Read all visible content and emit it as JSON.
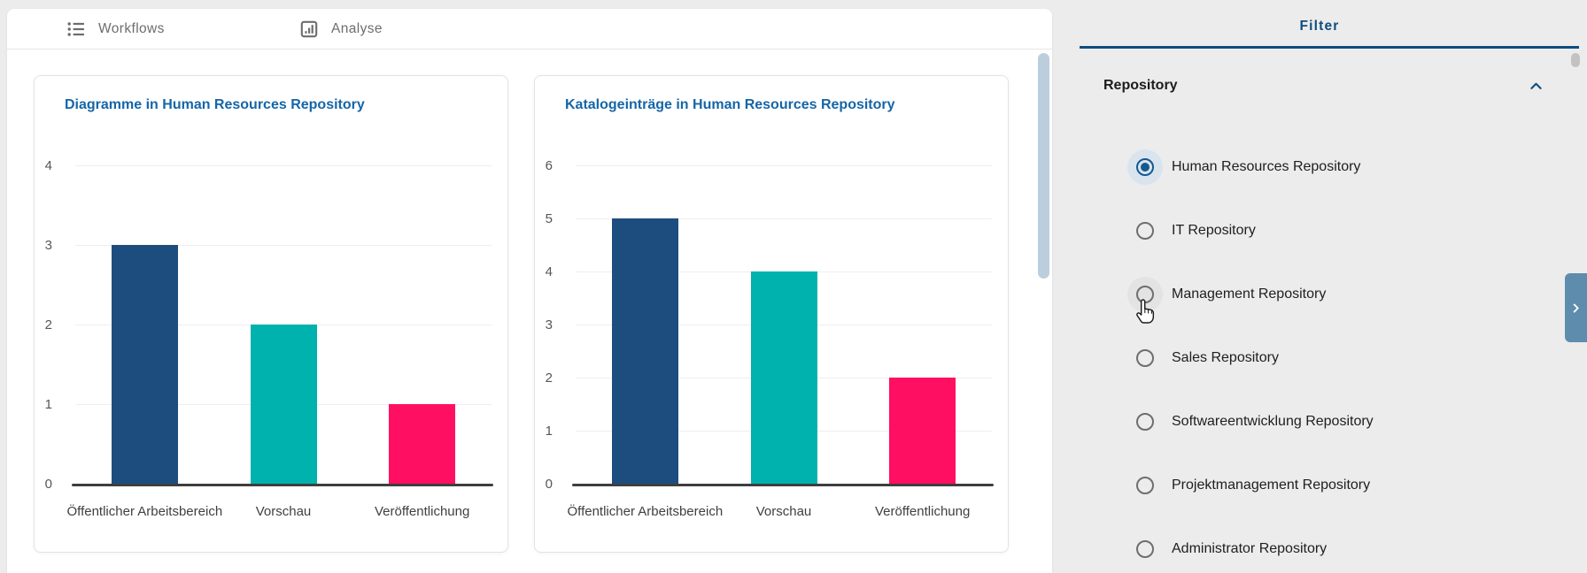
{
  "tabs": [
    {
      "label": "Workflows",
      "icon": "list-bulleted-icon"
    },
    {
      "label": "Analyse",
      "icon": "analytics-icon"
    }
  ],
  "filter": {
    "title": "Filter",
    "section": {
      "label": "Repository",
      "state": "expanded",
      "icon": "chevron-up-icon"
    },
    "options": [
      {
        "label": "Human Resources Repository",
        "selected": true,
        "hover": false
      },
      {
        "label": "IT Repository",
        "selected": false,
        "hover": false
      },
      {
        "label": "Management Repository",
        "selected": false,
        "hover": true
      },
      {
        "label": "Sales Repository",
        "selected": false,
        "hover": false
      },
      {
        "label": "Softwareentwicklung Repository",
        "selected": false,
        "hover": false
      },
      {
        "label": "Projektmanagement Repository",
        "selected": false,
        "hover": false
      },
      {
        "label": "Administrator Repository",
        "selected": false,
        "hover": false
      }
    ]
  },
  "chart_data": [
    {
      "type": "bar",
      "title": "Diagramme in Human Resources Repository",
      "categories": [
        "Öffentlicher Arbeitsbereich",
        "Vorschau",
        "Veröffentlichung"
      ],
      "values": [
        3,
        2,
        1
      ],
      "bar_colors": [
        "#1d4d7e",
        "#00b2ad",
        "#ff0f62"
      ],
      "ylim": [
        0,
        4
      ],
      "ytick_step": 1,
      "grid": true,
      "xlabel": "",
      "ylabel": "",
      "legend": "none"
    },
    {
      "type": "bar",
      "title": "Katalogeinträge in Human Resources Repository",
      "categories": [
        "Öffentlicher Arbeitsbereich",
        "Vorschau",
        "Veröffentlichung"
      ],
      "values": [
        5,
        4,
        2
      ],
      "bar_colors": [
        "#1d4d7e",
        "#00b2ad",
        "#ff0f62"
      ],
      "ylim": [
        0,
        6
      ],
      "ytick_step": 1,
      "grid": true,
      "xlabel": "",
      "ylabel": "",
      "legend": "none"
    }
  ],
  "colors": {
    "accent_navy": "#0f4c7f",
    "title_blue": "#1565a8",
    "bar_navy": "#1d4d7e",
    "bar_teal": "#00b2ad",
    "bar_pink": "#ff0f62",
    "background_gray": "#ececec",
    "scrollbar_thumb": "#bccddd",
    "edge_button_blue": "#5d8cad"
  },
  "icons": {
    "edge_button": "chevron-right-icon",
    "pointer": "hand-pointer-cursor"
  }
}
